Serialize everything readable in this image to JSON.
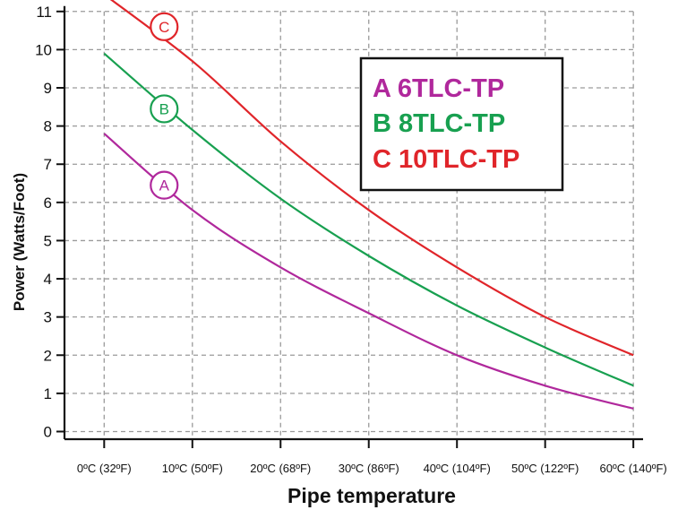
{
  "chart_data": {
    "type": "line",
    "xlabel": "Pipe temperature",
    "ylabel": "Power (Watts/Foot)",
    "x_categories": [
      "0ºC (32ºF)",
      "10ºC (50ºF)",
      "20ºC (68ºF)",
      "30ºC (86ºF)",
      "40ºC (104ºF)",
      "50ºC (122ºF)",
      "60ºC (140ºF)"
    ],
    "x_values": [
      0,
      10,
      20,
      30,
      40,
      50,
      60
    ],
    "y_ticks": [
      "0",
      "1",
      "2",
      "3",
      "4",
      "5",
      "6",
      "7",
      "8",
      "9",
      "10",
      "11"
    ],
    "ylim": [
      -0.2,
      11.3
    ],
    "xlim": [
      -4.5,
      61
    ],
    "grid": true,
    "legend_position": "top-right",
    "series": [
      {
        "name": "A 6TLC-TP",
        "marker": "A",
        "color": "#b0289c",
        "x": [
          0,
          10,
          20,
          30,
          40,
          50,
          60
        ],
        "y": [
          7.8,
          5.8,
          4.3,
          3.1,
          2.0,
          1.2,
          0.6
        ]
      },
      {
        "name": "B 8TLC-TP",
        "marker": "B",
        "color": "#18a050",
        "x": [
          0,
          10,
          20,
          30,
          40,
          50,
          60
        ],
        "y": [
          9.9,
          7.9,
          6.1,
          4.6,
          3.3,
          2.2,
          1.2
        ]
      },
      {
        "name": "C 10TLC-TP",
        "marker": "C",
        "color": "#e0252a",
        "x": [
          -1.5,
          10,
          20,
          30,
          40,
          50,
          60
        ],
        "y": [
          11.7,
          9.7,
          7.6,
          5.8,
          4.3,
          3.0,
          2.0
        ]
      }
    ],
    "markers": [
      {
        "label": "A",
        "x": 6.8,
        "y": 6.45
      },
      {
        "label": "B",
        "x": 6.8,
        "y": 8.45
      },
      {
        "label": "C",
        "x": 6.8,
        "y": 10.6
      }
    ]
  }
}
